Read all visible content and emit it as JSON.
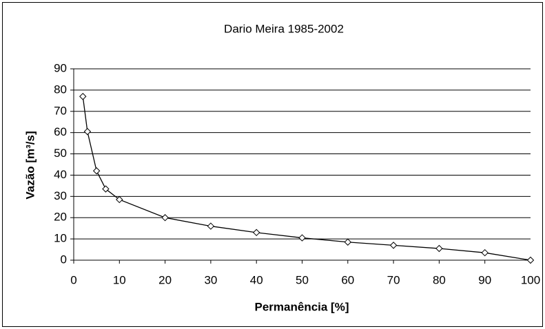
{
  "chart_data": {
    "type": "line",
    "title": "Dario Meira 1985-2002",
    "x_label": "Permanência [%]",
    "y_label": "Vazão [m³/s]",
    "x": [
      2,
      3,
      5,
      7,
      10,
      20,
      30,
      40,
      50,
      60,
      70,
      80,
      90,
      100
    ],
    "series": [
      {
        "name": "Dario Meira",
        "color": "#000000",
        "values": [
          77,
          60.5,
          42,
          33.5,
          28.5,
          20,
          16,
          13,
          10.5,
          8.5,
          7,
          5.5,
          3.5,
          0
        ]
      }
    ],
    "xlim": [
      0,
      100
    ],
    "xticks": [
      0,
      10,
      20,
      30,
      40,
      50,
      60,
      70,
      80,
      90,
      100
    ],
    "ylim": [
      0,
      90
    ],
    "yticks": [
      0,
      10,
      20,
      30,
      40,
      50,
      60,
      70,
      80,
      90
    ],
    "grid": true,
    "legend": false
  }
}
